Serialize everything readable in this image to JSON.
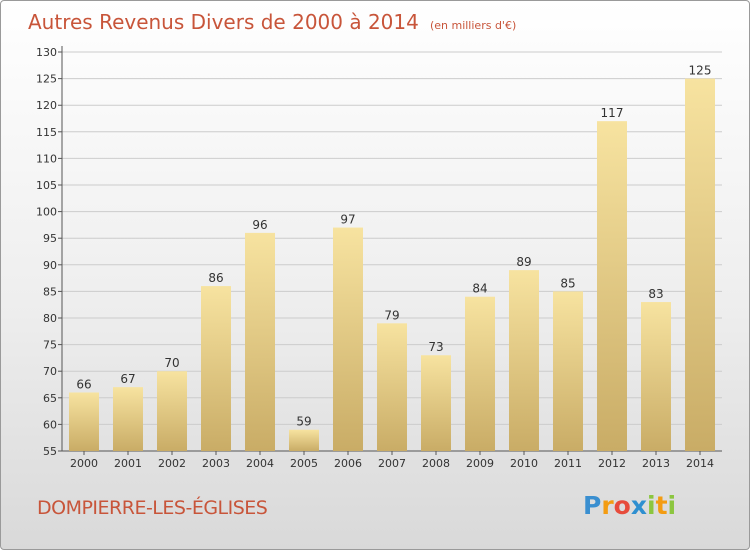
{
  "title": "Autres Revenus Divers de 2000 à 2014",
  "subtitle": "(en milliers d'€)",
  "city": "DOMPIERRE-LES-ÉGLISES",
  "logo": {
    "letters": [
      "P",
      "r",
      "o",
      "x",
      "i",
      "t",
      "i"
    ],
    "colors": [
      "#3a8fd0",
      "#f39c12",
      "#e74c3c",
      "#2e8fd0",
      "#8cc63f",
      "#f39c12",
      "#8cc63f"
    ]
  },
  "colors": {
    "bar_light": "#f7e3a0",
    "bar_dark": "#c9ac66",
    "title": "#c8553a",
    "grid": "#cccccc",
    "text": "#333333"
  },
  "chart_data": {
    "type": "bar",
    "categories": [
      "2000",
      "2001",
      "2002",
      "2003",
      "2004",
      "2005",
      "2006",
      "2007",
      "2008",
      "2009",
      "2010",
      "2011",
      "2012",
      "2013",
      "2014"
    ],
    "values": [
      66,
      67,
      70,
      86,
      96,
      59,
      97,
      79,
      73,
      84,
      89,
      85,
      117,
      83,
      125
    ],
    "ylim": [
      55,
      130
    ],
    "yticks": [
      55,
      60,
      65,
      70,
      75,
      80,
      85,
      90,
      95,
      100,
      105,
      110,
      115,
      120,
      125,
      130
    ],
    "grid": true,
    "xlabel": "",
    "ylabel": ""
  }
}
